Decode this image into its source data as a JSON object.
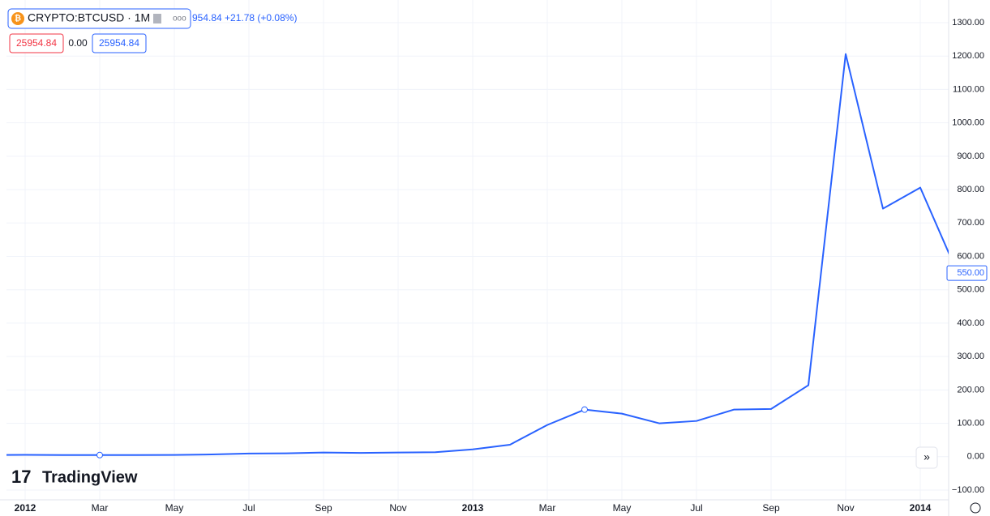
{
  "chart_data": {
    "type": "line",
    "title": "CRYPTO:BTCUSD · 1M",
    "subtitle": "954.84 +21.78 (+0.08%)",
    "legend_values": [
      "25954.84",
      "0.00",
      "25954.84"
    ],
    "brand": "TradingView",
    "categories": [
      null,
      "2012",
      null,
      "Mar",
      null,
      "May",
      null,
      "Jul",
      null,
      "Sep",
      null,
      "Nov",
      null,
      "2013",
      null,
      "Mar",
      null,
      "May",
      null,
      "Jul",
      null,
      "Sep",
      null,
      "Nov",
      null,
      "2014",
      null
    ],
    "series": [
      {
        "name": "CRYPTO:BTCUSD",
        "color": "#2962ff",
        "values": [
          4.7,
          5.5,
          4.9,
          4.9,
          5.0,
          5.2,
          6.7,
          9.4,
          10.0,
          12.4,
          11.2,
          12.6,
          13.5,
          22,
          36,
          95,
          141,
          129,
          100,
          107,
          141,
          143,
          214,
          1206,
          743,
          806,
          550
        ],
        "value_labels": [
          null,
          null,
          null,
          null,
          null,
          null,
          null,
          null,
          null,
          null,
          null,
          null,
          null,
          null,
          null,
          null,
          null,
          null,
          null,
          null,
          null,
          null,
          null,
          null,
          null,
          null,
          "550.00"
        ]
      }
    ],
    "markers": [
      3,
      16
    ],
    "ylim": [
      -100,
      1300
    ],
    "yticks": [
      {
        "value": -100,
        "label": "−100.00"
      },
      {
        "value": 0,
        "label": "0.00"
      },
      {
        "value": 100,
        "label": "100.00"
      },
      {
        "value": 200,
        "label": "200.00"
      },
      {
        "value": 300,
        "label": "300.00"
      },
      {
        "value": 400,
        "label": "400.00"
      },
      {
        "value": 500,
        "label": "500.00"
      },
      {
        "value": 600,
        "label": "600.00"
      },
      {
        "value": 700,
        "label": "700.00"
      },
      {
        "value": 800,
        "label": "800.00"
      },
      {
        "value": 900,
        "label": "900.00"
      },
      {
        "value": 1000,
        "label": "1000.00"
      },
      {
        "value": 1100,
        "label": "1100.00"
      },
      {
        "value": 1200,
        "label": "1200.00"
      },
      {
        "value": 1300,
        "label": "1300.00"
      }
    ],
    "grid": true
  }
}
